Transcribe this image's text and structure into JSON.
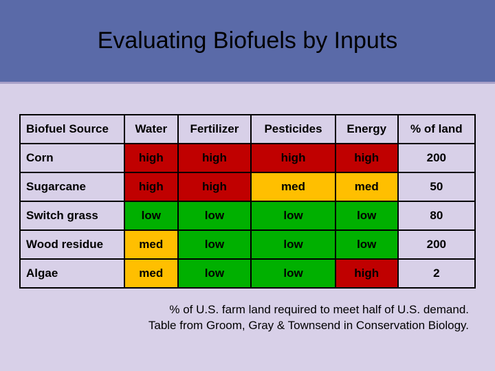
{
  "title": "Evaluating Biofuels by Inputs",
  "table": {
    "columns": [
      "Biofuel Source",
      "Water",
      "Fertilizer",
      "Pesticides",
      "Energy",
      "% of land"
    ],
    "rows": [
      {
        "source": "Corn",
        "cells": [
          {
            "v": "high",
            "c": "high"
          },
          {
            "v": "high",
            "c": "high"
          },
          {
            "v": "high",
            "c": "high"
          },
          {
            "v": "high",
            "c": "high"
          },
          {
            "v": "200",
            "c": "plain"
          }
        ]
      },
      {
        "source": "Sugarcane",
        "cells": [
          {
            "v": "high",
            "c": "high"
          },
          {
            "v": "high",
            "c": "high"
          },
          {
            "v": "med",
            "c": "med"
          },
          {
            "v": "med",
            "c": "med"
          },
          {
            "v": "50",
            "c": "plain"
          }
        ]
      },
      {
        "source": "Switch grass",
        "cells": [
          {
            "v": "low",
            "c": "low"
          },
          {
            "v": "low",
            "c": "low"
          },
          {
            "v": "low",
            "c": "low"
          },
          {
            "v": "low",
            "c": "low"
          },
          {
            "v": "80",
            "c": "plain"
          }
        ]
      },
      {
        "source": "Wood residue",
        "cells": [
          {
            "v": "med",
            "c": "med"
          },
          {
            "v": "low",
            "c": "low"
          },
          {
            "v": "low",
            "c": "low"
          },
          {
            "v": "low",
            "c": "low"
          },
          {
            "v": "200",
            "c": "plain"
          }
        ]
      },
      {
        "source": "Algae",
        "cells": [
          {
            "v": "med",
            "c": "med"
          },
          {
            "v": "low",
            "c": "low"
          },
          {
            "v": "low",
            "c": "low"
          },
          {
            "v": "high",
            "c": "high"
          },
          {
            "v": "2",
            "c": "plain"
          }
        ]
      }
    ]
  },
  "caption_line1": "% of U.S. farm land required to meet half of U.S. demand.",
  "caption_line2": "Table from Groom, Gray & Townsend in Conservation Biology.",
  "colors": {
    "slide_bg": "#d8d0e8",
    "title_bar_bg": "#5a6aa8",
    "high": "#c00000",
    "med": "#ffbf00",
    "low": "#00b000",
    "border": "#000000"
  }
}
